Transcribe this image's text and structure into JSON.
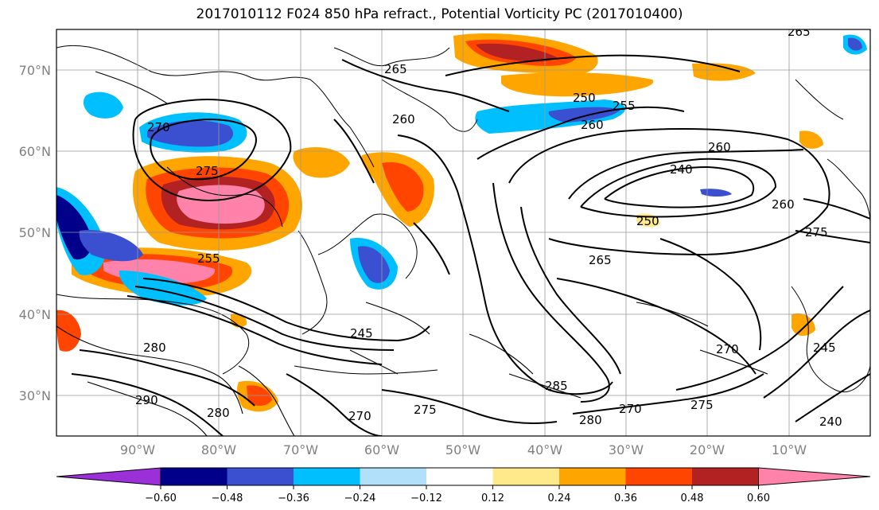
{
  "title": "2017010112 F024 850 hPa refract., Potential Vorticity PC (2017010400)",
  "map": {
    "lon_labels": [
      "90°W",
      "80°W",
      "70°W",
      "60°W",
      "50°W",
      "40°W",
      "30°W",
      "20°W",
      "10°W"
    ],
    "lat_labels": [
      "70°N",
      "60°N",
      "50°N",
      "40°N",
      "30°N"
    ],
    "extent": {
      "lon": [
        -100,
        0
      ],
      "lat": [
        25,
        75
      ]
    }
  },
  "contours": {
    "labels": [
      "265",
      "265",
      "270",
      "275",
      "260",
      "260",
      "255",
      "250",
      "260",
      "240",
      "260",
      "250",
      "275",
      "265",
      "255",
      "245",
      "280",
      "290",
      "280",
      "270",
      "275",
      "285",
      "280",
      "270",
      "275",
      "245",
      "240",
      "270"
    ]
  },
  "colorbar": {
    "ticks": [
      "−0.60",
      "−0.48",
      "−0.36",
      "−0.24",
      "−0.12",
      "0.12",
      "0.24",
      "0.36",
      "0.48",
      "0.60"
    ],
    "colors": [
      "#9b30d9",
      "#00008b",
      "#3a50d0",
      "#00bfff",
      "#b0e0fa",
      "#ffffff",
      "#ffe98a",
      "#ffa500",
      "#ff4500",
      "#b22222",
      "#ff82ab"
    ]
  }
}
